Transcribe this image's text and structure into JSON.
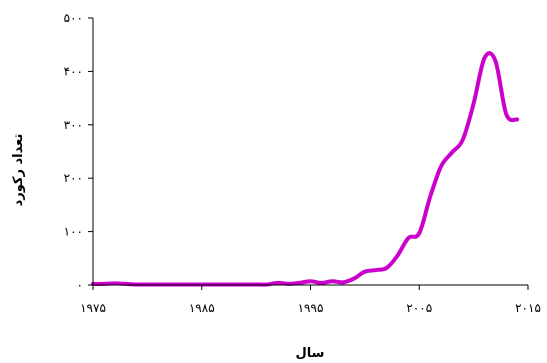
{
  "chart_data": {
    "type": "line",
    "title": "",
    "xlabel": "سال",
    "ylabel": "تعداد رکورد",
    "xlim": [
      1975,
      2015
    ],
    "ylim": [
      0,
      500
    ],
    "x_ticks": [
      1975,
      1985,
      1995,
      2005,
      2015
    ],
    "x_tick_labels": [
      "۱۹۷۵",
      "۱۹۸۵",
      "۱۹۹۵",
      "۲۰۰۵",
      "۲۰۱۵"
    ],
    "y_ticks": [
      0,
      100,
      200,
      300,
      400,
      500
    ],
    "y_tick_labels": [
      "۰",
      "۱۰۰",
      "۲۰۰",
      "۳۰۰",
      "۴۰۰",
      "۵۰۰"
    ],
    "grid": false,
    "legend": "none",
    "series": [
      {
        "color": "#cc00cc",
        "x": [
          1975,
          1976,
          1977,
          1978,
          1979,
          1980,
          1981,
          1982,
          1983,
          1984,
          1985,
          1986,
          1987,
          1988,
          1989,
          1990,
          1991,
          1992,
          1993,
          1994,
          1995,
          1996,
          1997,
          1998,
          1999,
          2000,
          2001,
          2002,
          2003,
          2004,
          2005,
          2006,
          2007,
          2008,
          2009,
          2010,
          2011,
          2012,
          2013,
          2014
        ],
        "values": [
          2,
          2,
          3,
          2,
          1,
          1,
          1,
          1,
          1,
          1,
          1,
          1,
          1,
          1,
          1,
          1,
          1,
          4,
          2,
          4,
          7,
          4,
          7,
          5,
          12,
          25,
          28,
          32,
          55,
          88,
          97,
          165,
          222,
          248,
          272,
          340,
          425,
          420,
          320,
          310
        ]
      }
    ]
  }
}
